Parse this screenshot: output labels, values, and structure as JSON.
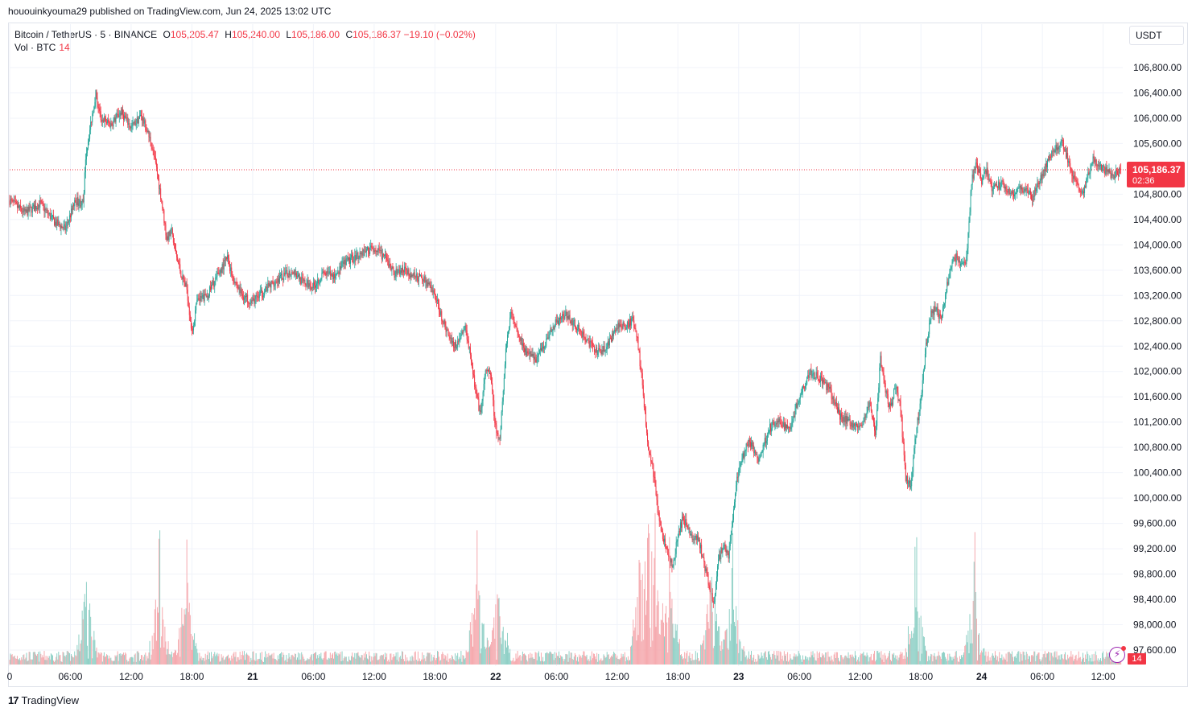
{
  "header": {
    "published": "hououinkyouma29 published on TradingView.com, Jun 24, 2025 13:02 UTC"
  },
  "legend": {
    "symbol": "Bitcoin / TetherUS · 5 · BINANCE",
    "o_label": "O",
    "o": "105,205.47",
    "h_label": "H",
    "h": "105,240.00",
    "l_label": "L",
    "l": "105,186.00",
    "c_label": "C",
    "c": "105,186.37",
    "change": "−19.10 (−0.02%)"
  },
  "volume_legend": {
    "label": "Vol · BTC",
    "value": "14"
  },
  "currency": "USDT",
  "last_price": {
    "price": "105,186.37",
    "countdown": "02:36"
  },
  "volume_badge": "14",
  "brand": {
    "logo": "17",
    "name": "TradingView"
  },
  "colors": {
    "up": "#26a69a",
    "down": "#f23645",
    "up_vol": "#8fd0c6",
    "down_vol": "#f5a9ae",
    "grid": "#f0f3fa"
  },
  "chart_data": {
    "type": "candlestick",
    "title": "Bitcoin / TetherUS · 5 · BINANCE",
    "ylabel": "USDT",
    "ylim": [
      97350,
      107300
    ],
    "y_ticks": [
      106800,
      106400,
      106000,
      105600,
      104800,
      104400,
      104000,
      103600,
      103200,
      102800,
      102400,
      102000,
      101600,
      101200,
      100800,
      100400,
      100000,
      99600,
      99200,
      98800,
      98400,
      98000,
      97600
    ],
    "y_tick_labels": [
      "106,800.00",
      "106,400.00",
      "106,000.00",
      "105,600.00",
      "104,800.00",
      "104,400.00",
      "104,000.00",
      "103,600.00",
      "103,200.00",
      "102,800.00",
      "102,400.00",
      "102,000.00",
      "101,600.00",
      "101,200.00",
      "100,800.00",
      "100,400.00",
      "100,000.00",
      "99,600.00",
      "99,200.00",
      "98,800.00",
      "98,400.00",
      "98,000.00",
      "97,600.00"
    ],
    "x_ticks": [
      0,
      6,
      12,
      18,
      24,
      30,
      36,
      42,
      48,
      54,
      60,
      66,
      72,
      78,
      84,
      90,
      96,
      102,
      108
    ],
    "x_tick_labels": [
      "0",
      "06:00",
      "12:00",
      "18:00",
      "21",
      "06:00",
      "12:00",
      "18:00",
      "22",
      "06:00",
      "12:00",
      "18:00",
      "23",
      "06:00",
      "12:00",
      "18:00",
      "24",
      "06:00",
      "12:00"
    ],
    "bold_x_ticks": [
      "21",
      "22",
      "23",
      "24"
    ],
    "xlim_hours": [
      0,
      110
    ],
    "path": [
      [
        0,
        104700
      ],
      [
        1.5,
        104500
      ],
      [
        3,
        104650
      ],
      [
        4.5,
        104350
      ],
      [
        5.5,
        104250
      ],
      [
        6.5,
        104700
      ],
      [
        7.3,
        104650
      ],
      [
        7.5,
        105400
      ],
      [
        8.5,
        106400
      ],
      [
        9,
        106000
      ],
      [
        10,
        105900
      ],
      [
        11,
        106100
      ],
      [
        12,
        105850
      ],
      [
        13,
        106050
      ],
      [
        14,
        105600
      ],
      [
        14.5,
        105200
      ],
      [
        15,
        104700
      ],
      [
        15.5,
        104100
      ],
      [
        16,
        104200
      ],
      [
        16.5,
        103800
      ],
      [
        17,
        103500
      ],
      [
        17.5,
        103300
      ],
      [
        18,
        102600
      ],
      [
        18.5,
        103100
      ],
      [
        19.5,
        103200
      ],
      [
        20.5,
        103500
      ],
      [
        21.5,
        103800
      ],
      [
        22,
        103500
      ],
      [
        23,
        103200
      ],
      [
        24,
        103100
      ],
      [
        25,
        103250
      ],
      [
        26,
        103400
      ],
      [
        27,
        103500
      ],
      [
        28,
        103600
      ],
      [
        29,
        103400
      ],
      [
        30,
        103350
      ],
      [
        31,
        103550
      ],
      [
        32,
        103500
      ],
      [
        33,
        103700
      ],
      [
        34,
        103800
      ],
      [
        35,
        103900
      ],
      [
        36,
        103950
      ],
      [
        37,
        103800
      ],
      [
        38,
        103550
      ],
      [
        39,
        103600
      ],
      [
        40,
        103500
      ],
      [
        41,
        103450
      ],
      [
        42,
        103200
      ],
      [
        43,
        102700
      ],
      [
        44,
        102400
      ],
      [
        45,
        102700
      ],
      [
        45.5,
        102300
      ],
      [
        46,
        101700
      ],
      [
        46.5,
        101300
      ],
      [
        47,
        102000
      ],
      [
        47.5,
        101900
      ],
      [
        48,
        101100
      ],
      [
        48.4,
        100900
      ],
      [
        49,
        102300
      ],
      [
        49.5,
        103000
      ],
      [
        50,
        102700
      ],
      [
        51,
        102300
      ],
      [
        52,
        102200
      ],
      [
        53,
        102500
      ],
      [
        54,
        102800
      ],
      [
        55,
        102900
      ],
      [
        56,
        102700
      ],
      [
        57,
        102500
      ],
      [
        58,
        102300
      ],
      [
        59,
        102400
      ],
      [
        60,
        102700
      ],
      [
        61,
        102750
      ],
      [
        61.5,
        102800
      ],
      [
        62,
        102500
      ],
      [
        62.5,
        101800
      ],
      [
        63,
        100900
      ],
      [
        63.5,
        100500
      ],
      [
        64,
        99800
      ],
      [
        64.5,
        99400
      ],
      [
        65,
        99100
      ],
      [
        65.5,
        98900
      ],
      [
        66,
        99400
      ],
      [
        66.5,
        99700
      ],
      [
        67,
        99500
      ],
      [
        67.5,
        99300
      ],
      [
        68,
        99400
      ],
      [
        68.5,
        99000
      ],
      [
        69,
        98700
      ],
      [
        69.5,
        98300
      ],
      [
        70,
        99000
      ],
      [
        70.5,
        99300
      ],
      [
        71,
        99100
      ],
      [
        71.5,
        99800
      ],
      [
        72,
        100500
      ],
      [
        72.5,
        100700
      ],
      [
        73,
        100900
      ],
      [
        74,
        100600
      ],
      [
        75,
        101100
      ],
      [
        76,
        101200
      ],
      [
        77,
        101100
      ],
      [
        78,
        101600
      ],
      [
        79,
        102000
      ],
      [
        80,
        101900
      ],
      [
        81,
        101700
      ],
      [
        82,
        101300
      ],
      [
        83,
        101200
      ],
      [
        84,
        101100
      ],
      [
        85,
        101500
      ],
      [
        85.5,
        101000
      ],
      [
        86,
        102200
      ],
      [
        86.5,
        101700
      ],
      [
        87,
        101400
      ],
      [
        87.5,
        101800
      ],
      [
        88,
        101400
      ],
      [
        88.5,
        100300
      ],
      [
        89,
        100200
      ],
      [
        89.5,
        101000
      ],
      [
        90,
        101600
      ],
      [
        90.5,
        102400
      ],
      [
        91,
        102900
      ],
      [
        91.5,
        103000
      ],
      [
        92,
        102800
      ],
      [
        92.5,
        103300
      ],
      [
        93,
        103700
      ],
      [
        93.5,
        103800
      ],
      [
        94,
        103700
      ],
      [
        94.5,
        103750
      ],
      [
        95,
        105000
      ],
      [
        95.5,
        105300
      ],
      [
        96,
        105000
      ],
      [
        96.5,
        105200
      ],
      [
        97,
        104900
      ],
      [
        98,
        104950
      ],
      [
        99,
        104800
      ],
      [
        100,
        104900
      ],
      [
        101,
        104750
      ],
      [
        102,
        105100
      ],
      [
        103,
        105500
      ],
      [
        104,
        105600
      ],
      [
        105,
        105100
      ],
      [
        106,
        104800
      ],
      [
        106.5,
        105100
      ],
      [
        107,
        105350
      ],
      [
        108,
        105200
      ],
      [
        109,
        105100
      ],
      [
        109.8,
        105186
      ]
    ],
    "volume_spikes_hours": [
      7.5,
      14.8,
      17.5,
      46.2,
      48.3,
      62.2,
      63.1,
      63.7,
      65.2,
      69.3,
      71.4,
      89.5,
      95.3
    ],
    "last_value": 105186.37
  }
}
